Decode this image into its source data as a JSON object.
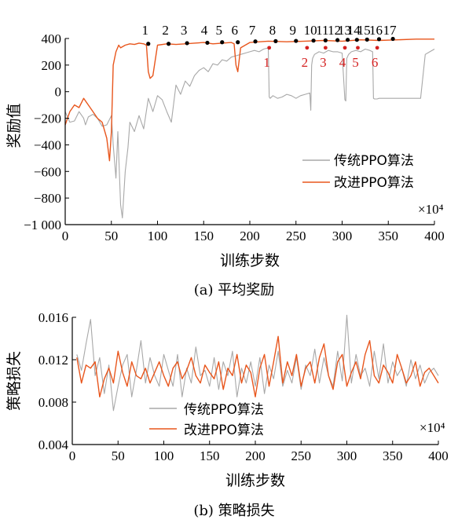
{
  "chart_data": [
    {
      "type": "line",
      "caption": "(a) 平均奖励",
      "xlabel": "训练步数",
      "ylabel": "奖励值",
      "x_multiplier": "×10⁴",
      "xlim": [
        0,
        400
      ],
      "ylim": [
        -1000,
        400
      ],
      "xticks": [
        0,
        50,
        100,
        150,
        200,
        250,
        300,
        350,
        400
      ],
      "yticks": [
        -1000,
        -800,
        -600,
        -400,
        -200,
        0,
        200,
        400
      ],
      "ytick_labels": [
        "−1 000",
        "−800",
        "−600",
        "−400",
        "−200",
        "0",
        "200",
        "400"
      ],
      "legend_position": "right",
      "series": [
        {
          "name": "传统PPO算法",
          "color": "#a8a8a8",
          "x": [
            0,
            5,
            10,
            15,
            20,
            22,
            25,
            30,
            35,
            40,
            45,
            50,
            52,
            55,
            57,
            60,
            62,
            65,
            68,
            70,
            75,
            80,
            85,
            90,
            95,
            100,
            105,
            110,
            115,
            120,
            125,
            130,
            135,
            140,
            145,
            150,
            155,
            160,
            165,
            170,
            175,
            180,
            185,
            190,
            195,
            200,
            205,
            210,
            215,
            220,
            221,
            222,
            225,
            230,
            235,
            240,
            245,
            250,
            255,
            260,
            265,
            266,
            267,
            268,
            270,
            275,
            280,
            285,
            290,
            295,
            300,
            303,
            304,
            305,
            307,
            310,
            315,
            320,
            325,
            330,
            333,
            334,
            335,
            338,
            340,
            345,
            350,
            360,
            370,
            380,
            385,
            390,
            395,
            400
          ],
          "y": [
            -150,
            -230,
            -220,
            -150,
            -200,
            -250,
            -190,
            -170,
            -200,
            -260,
            -250,
            -180,
            -400,
            -650,
            -300,
            -850,
            -950,
            -600,
            -420,
            -230,
            -300,
            -180,
            -280,
            -50,
            -150,
            -30,
            -60,
            -150,
            -230,
            50,
            -20,
            80,
            40,
            120,
            160,
            180,
            150,
            210,
            200,
            240,
            230,
            260,
            270,
            280,
            290,
            300,
            310,
            300,
            320,
            330,
            -40,
            -50,
            -30,
            -50,
            -40,
            -20,
            -30,
            -50,
            -30,
            -20,
            -10,
            -140,
            200,
            250,
            280,
            300,
            290,
            310,
            300,
            300,
            290,
            -60,
            -70,
            250,
            280,
            300,
            310,
            300,
            320,
            310,
            300,
            -50,
            -55,
            -55,
            -50,
            -50,
            -50,
            -50,
            -50,
            -50,
            -50,
            280,
            300,
            320
          ]
        },
        {
          "name": "改进PPO算法",
          "color": "#e8561d",
          "x": [
            0,
            5,
            10,
            15,
            20,
            25,
            30,
            35,
            40,
            45,
            48,
            50,
            52,
            55,
            58,
            60,
            65,
            70,
            75,
            80,
            85,
            88,
            90,
            92,
            95,
            100,
            110,
            120,
            130,
            140,
            150,
            160,
            170,
            180,
            183,
            185,
            187,
            190,
            200,
            220,
            240,
            260,
            280,
            300,
            320,
            340,
            360,
            380,
            400
          ],
          "y": [
            -250,
            -150,
            -100,
            -120,
            -50,
            -100,
            -150,
            -200,
            -230,
            -350,
            -520,
            -300,
            200,
            300,
            350,
            330,
            350,
            360,
            355,
            365,
            360,
            350,
            150,
            100,
            120,
            350,
            360,
            355,
            360,
            365,
            370,
            360,
            365,
            370,
            360,
            200,
            150,
            330,
            370,
            380,
            375,
            380,
            385,
            380,
            390,
            385,
            390,
            395,
            395
          ]
        }
      ],
      "markers_black": {
        "labels": [
          "1",
          "2",
          "3",
          "4",
          "5",
          "6",
          "7",
          "8",
          "9",
          "10",
          "11",
          "12",
          "13",
          "14",
          "15",
          "16",
          "17"
        ],
        "x": [
          90,
          112,
          132,
          154,
          170,
          187,
          206,
          228,
          250,
          269,
          282,
          295,
          306,
          316,
          327,
          340,
          355
        ],
        "y": [
          360,
          360,
          365,
          368,
          372,
          372,
          378,
          380,
          382,
          384,
          386,
          388,
          390,
          390,
          392,
          395,
          397
        ]
      },
      "markers_red": {
        "labels": [
          "1",
          "2",
          "3",
          "4",
          "5",
          "6"
        ],
        "x": [
          221,
          262,
          282,
          303,
          317,
          338
        ],
        "y": [
          330,
          330,
          330,
          330,
          330,
          330
        ]
      }
    },
    {
      "type": "line",
      "caption": "(b) 策略损失",
      "xlabel": "训练步数",
      "ylabel": "策略损失",
      "x_multiplier": "×10⁴",
      "xlim": [
        0,
        400
      ],
      "ylim": [
        0.004,
        0.016
      ],
      "xticks": [
        0,
        50,
        100,
        150,
        200,
        250,
        300,
        350,
        400
      ],
      "yticks": [
        0.004,
        0.008,
        0.012,
        0.016
      ],
      "legend_position": "center",
      "series": [
        {
          "name": "传统PPO算法",
          "color": "#a8a8a8",
          "x": [
            5,
            10,
            15,
            20,
            25,
            30,
            35,
            40,
            45,
            50,
            55,
            60,
            65,
            70,
            75,
            80,
            85,
            90,
            95,
            100,
            105,
            110,
            115,
            120,
            125,
            130,
            135,
            140,
            145,
            150,
            155,
            160,
            165,
            170,
            175,
            180,
            185,
            190,
            195,
            200,
            205,
            210,
            215,
            220,
            225,
            230,
            235,
            240,
            245,
            250,
            255,
            260,
            265,
            270,
            275,
            280,
            285,
            290,
            295,
            300,
            305,
            310,
            315,
            320,
            325,
            330,
            335,
            340,
            345,
            350,
            355,
            360,
            365,
            370,
            375,
            380,
            385,
            390,
            395,
            400
          ],
          "y": [
            0.0125,
            0.011,
            0.0135,
            0.0158,
            0.0105,
            0.0122,
            0.0088,
            0.0115,
            0.0072,
            0.0095,
            0.0115,
            0.0125,
            0.0085,
            0.011,
            0.0138,
            0.0098,
            0.0122,
            0.0105,
            0.0095,
            0.0125,
            0.011,
            0.0095,
            0.0125,
            0.0085,
            0.0112,
            0.0098,
            0.0132,
            0.0105,
            0.011,
            0.0095,
            0.0122,
            0.0092,
            0.0118,
            0.0105,
            0.0128,
            0.0085,
            0.0112,
            0.0098,
            0.0118,
            0.0095,
            0.0122,
            0.0088,
            0.0115,
            0.0102,
            0.0128,
            0.0095,
            0.011,
            0.0098,
            0.0122,
            0.0092,
            0.0115,
            0.0105,
            0.013,
            0.0098,
            0.0122,
            0.0105,
            0.0095,
            0.0128,
            0.01,
            0.0162,
            0.0098,
            0.0125,
            0.0105,
            0.0112,
            0.0095,
            0.0128,
            0.0102,
            0.0135,
            0.0098,
            0.0118,
            0.0105,
            0.0112,
            0.0095,
            0.012,
            0.0102,
            0.0115,
            0.0098,
            0.0108,
            0.0112,
            0.0105
          ]
        },
        {
          "name": "改进PPO算法",
          "color": "#e8561d",
          "x": [
            5,
            10,
            15,
            20,
            25,
            30,
            35,
            40,
            45,
            50,
            55,
            60,
            65,
            70,
            75,
            80,
            85,
            90,
            95,
            100,
            105,
            110,
            115,
            120,
            125,
            130,
            135,
            140,
            145,
            150,
            155,
            160,
            165,
            170,
            175,
            180,
            185,
            190,
            195,
            200,
            205,
            210,
            215,
            220,
            225,
            230,
            235,
            240,
            245,
            250,
            255,
            260,
            265,
            270,
            275,
            280,
            285,
            290,
            295,
            300,
            305,
            310,
            315,
            320,
            325,
            330,
            335,
            340,
            345,
            350,
            355,
            360,
            365,
            370,
            375,
            380,
            385,
            390,
            395,
            400
          ],
          "y": [
            0.0122,
            0.0098,
            0.0115,
            0.0112,
            0.0118,
            0.0085,
            0.0102,
            0.0112,
            0.0098,
            0.0128,
            0.0108,
            0.0095,
            0.0118,
            0.0105,
            0.0102,
            0.0112,
            0.0098,
            0.0108,
            0.0118,
            0.0105,
            0.0095,
            0.0112,
            0.0118,
            0.0102,
            0.011,
            0.0122,
            0.0105,
            0.0098,
            0.0115,
            0.0108,
            0.0102,
            0.0118,
            0.0092,
            0.0112,
            0.0105,
            0.0125,
            0.0098,
            0.0115,
            0.0108,
            0.0085,
            0.0112,
            0.0125,
            0.0095,
            0.0118,
            0.0142,
            0.0098,
            0.0118,
            0.0105,
            0.0125,
            0.0095,
            0.0112,
            0.0118,
            0.0098,
            0.0122,
            0.0135,
            0.0105,
            0.0092,
            0.0118,
            0.0125,
            0.0095,
            0.0108,
            0.0118,
            0.0102,
            0.0125,
            0.0138,
            0.0105,
            0.0098,
            0.0115,
            0.0108,
            0.0098,
            0.0125,
            0.0112,
            0.0098,
            0.0105,
            0.0118,
            0.0095,
            0.0108,
            0.0112,
            0.0105,
            0.0098
          ]
        }
      ]
    }
  ]
}
